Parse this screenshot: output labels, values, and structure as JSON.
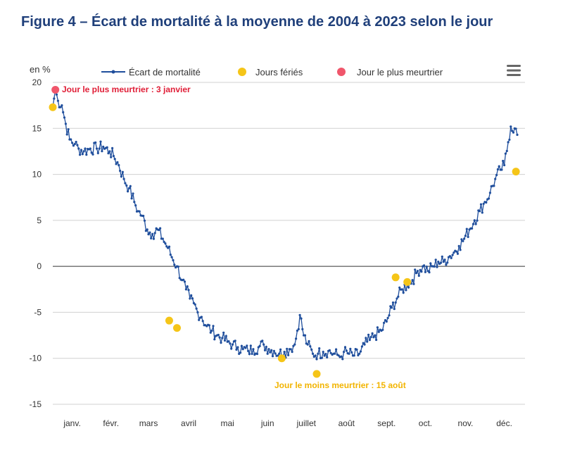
{
  "figure_title": "Figure 4 – Écart de mortalité à la moyenne de 2004 à 2023 selon le jour",
  "colors": {
    "title": "#1f3f7a",
    "series": "#1f4e9c",
    "holiday": "#f5c518",
    "deadliest": "#f0566b",
    "annotation_deadliest": "#e01e37",
    "annotation_least": "#f2b400"
  },
  "icons": {
    "menu": "hamburger-menu-icon"
  },
  "chart_data": {
    "type": "line",
    "ylabel": "en %",
    "ylim": [
      -15,
      20
    ],
    "yticks": [
      "20",
      "15",
      "10",
      "5",
      "0",
      "-5",
      "-10",
      "-15"
    ],
    "xlim": [
      1,
      366
    ],
    "month_labels": [
      "janv.",
      "févr.",
      "mars",
      "avril",
      "mai",
      "juin",
      "juillet",
      "août",
      "sept.",
      "oct.",
      "nov.",
      "déc."
    ],
    "grid": "horizontal",
    "legend_position": "top",
    "legend": [
      {
        "label": "Écart de mortalité"
      },
      {
        "label": "Jours fériés"
      },
      {
        "label": "Jour le plus meurtrier"
      }
    ],
    "series": [
      {
        "name": "Écart de mortalité",
        "anchors": [
          [
            1,
            17.3
          ],
          [
            3,
            19.2
          ],
          [
            5,
            18.0
          ],
          [
            8,
            17.5
          ],
          [
            11,
            15.5
          ],
          [
            14,
            13.8
          ],
          [
            18,
            13.3
          ],
          [
            21,
            12.8
          ],
          [
            25,
            12.5
          ],
          [
            30,
            12.8
          ],
          [
            35,
            12.8
          ],
          [
            40,
            13.0
          ],
          [
            45,
            12.5
          ],
          [
            48,
            12.0
          ],
          [
            52,
            11.0
          ],
          [
            56,
            9.5
          ],
          [
            60,
            8.5
          ],
          [
            64,
            7.0
          ],
          [
            67,
            6.0
          ],
          [
            70,
            5.5
          ],
          [
            74,
            4.0
          ],
          [
            78,
            3.5
          ],
          [
            82,
            4.0
          ],
          [
            86,
            3.0
          ],
          [
            90,
            2.0
          ],
          [
            93,
            1.0
          ],
          [
            97,
            0.0
          ],
          [
            101,
            -1.5
          ],
          [
            104,
            -2.5
          ],
          [
            107,
            -3.5
          ],
          [
            110,
            -4.0
          ],
          [
            113,
            -5.0
          ],
          [
            116,
            -5.5
          ],
          [
            120,
            -6.5
          ],
          [
            124,
            -7.0
          ],
          [
            128,
            -7.5
          ],
          [
            132,
            -7.8
          ],
          [
            136,
            -8.2
          ],
          [
            140,
            -8.5
          ],
          [
            144,
            -8.8
          ],
          [
            148,
            -9.0
          ],
          [
            152,
            -9.2
          ],
          [
            156,
            -9.0
          ],
          [
            160,
            -8.8
          ],
          [
            164,
            -8.5
          ],
          [
            168,
            -9.0
          ],
          [
            172,
            -9.2
          ],
          [
            176,
            -9.5
          ],
          [
            180,
            -9.3
          ],
          [
            184,
            -9.0
          ],
          [
            188,
            -8.5
          ],
          [
            190,
            -7.0
          ],
          [
            192,
            -5.3
          ],
          [
            195,
            -7.5
          ],
          [
            198,
            -8.5
          ],
          [
            202,
            -9.5
          ],
          [
            206,
            -9.5
          ],
          [
            210,
            -9.3
          ],
          [
            214,
            -9.2
          ],
          [
            218,
            -9.5
          ],
          [
            222,
            -9.7
          ],
          [
            224,
            -9.8
          ],
          [
            226,
            -9.3
          ],
          [
            230,
            -9.5
          ],
          [
            234,
            -9.7
          ],
          [
            238,
            -9.5
          ],
          [
            242,
            -8.5
          ],
          [
            246,
            -8.0
          ],
          [
            250,
            -7.5
          ],
          [
            255,
            -7.0
          ],
          [
            259,
            -6.0
          ],
          [
            263,
            -4.5
          ],
          [
            267,
            -3.5
          ],
          [
            271,
            -2.5
          ],
          [
            275,
            -2.0
          ],
          [
            279,
            -1.5
          ],
          [
            283,
            -0.5
          ],
          [
            287,
            0.0
          ],
          [
            291,
            -0.5
          ],
          [
            295,
            0.0
          ],
          [
            299,
            0.5
          ],
          [
            303,
            0.5
          ],
          [
            307,
            1.0
          ],
          [
            311,
            1.5
          ],
          [
            315,
            2.2
          ],
          [
            319,
            3.0
          ],
          [
            323,
            4.0
          ],
          [
            327,
            5.0
          ],
          [
            331,
            6.0
          ],
          [
            335,
            7.0
          ],
          [
            339,
            8.0
          ],
          [
            343,
            9.5
          ],
          [
            347,
            10.5
          ],
          [
            350,
            11.0
          ],
          [
            353,
            13.5
          ],
          [
            355,
            15.2
          ],
          [
            358,
            15.0
          ],
          [
            360,
            14.3
          ]
        ]
      }
    ],
    "holidays": [
      {
        "day": 1,
        "value": 17.3
      },
      {
        "day": 91,
        "value": -5.9
      },
      {
        "day": 97,
        "value": -6.7
      },
      {
        "day": 178,
        "value": -10.0
      },
      {
        "day": 205,
        "value": -11.7
      },
      {
        "day": 266,
        "value": -1.2
      },
      {
        "day": 275,
        "value": -1.7
      },
      {
        "day": 359,
        "value": 10.3
      }
    ],
    "deadliest_day": {
      "day": 3,
      "value": 19.2
    },
    "annotations": {
      "deadliest": "Jour le plus meurtrier : 3 janvier",
      "least": "Jour le moins meurtrier : 15 août"
    }
  }
}
